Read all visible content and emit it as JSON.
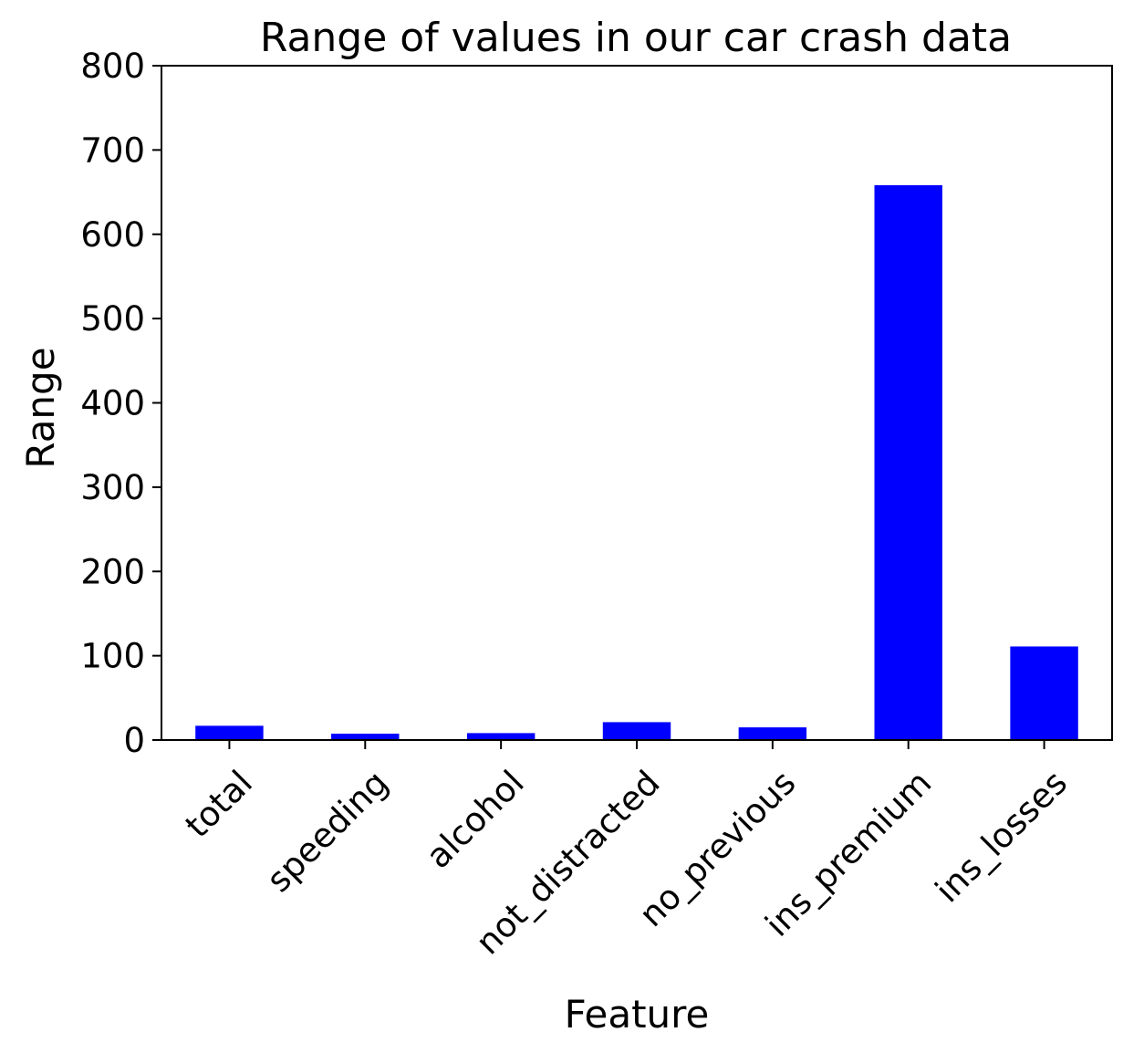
{
  "chart_data": {
    "type": "bar",
    "title": "Range of values in our car crash data",
    "xlabel": "Feature",
    "ylabel": "Range",
    "categories": [
      "total",
      "speeding",
      "alcohol",
      "not_distracted",
      "no_previous",
      "ins_premium",
      "ins_losses"
    ],
    "values": [
      16.9,
      7.5,
      8.2,
      21.2,
      15.0,
      658.2,
      111.0
    ],
    "ylim": [
      0,
      800
    ],
    "yticks": [
      "0",
      "100",
      "200",
      "300",
      "400",
      "500",
      "600",
      "700",
      "800"
    ],
    "bar_color": "#0000ff",
    "grid": false,
    "legend": "none"
  }
}
